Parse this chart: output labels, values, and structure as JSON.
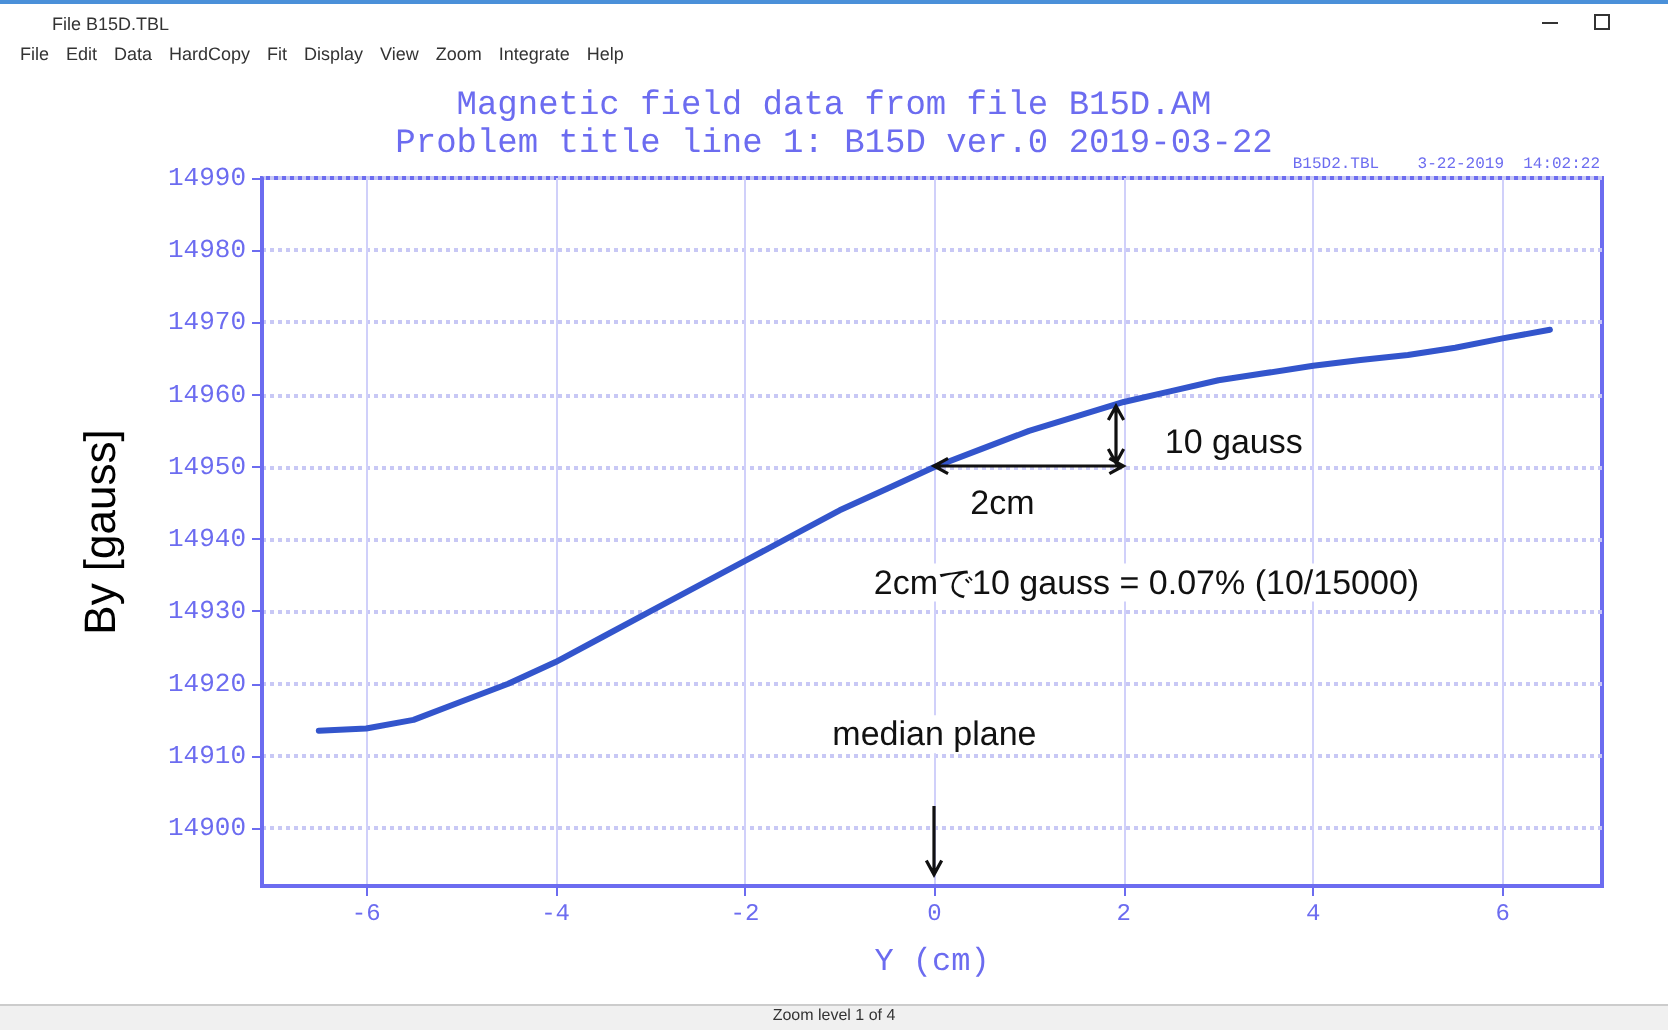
{
  "chart_data": {
    "type": "line",
    "title": "Magnetic field data from file B15D.AM",
    "subtitle": "Problem title line 1: B15D ver.0 2019-03-22",
    "xlabel": "Y (cm)",
    "ylabel": "By [gauss]",
    "x": [
      -6.5,
      -6,
      -5.5,
      -5,
      -4.5,
      -4,
      -3.5,
      -3,
      -2.5,
      -2,
      -1.5,
      -1,
      -0.5,
      0,
      0.5,
      1,
      1.5,
      2,
      2.5,
      3,
      3.5,
      4,
      4.5,
      5,
      5.5,
      6,
      6.5
    ],
    "series": [
      {
        "color": "#3355cc",
        "values": [
          14913.5,
          14913.8,
          14915,
          14917.5,
          14920,
          14923,
          14926.5,
          14930,
          14933.5,
          14937,
          14940.5,
          14944,
          14947,
          14950,
          14952.5,
          14955,
          14957,
          14959,
          14960.5,
          14962,
          14963,
          14964,
          14964.8,
          14965.5,
          14966.5,
          14967.8,
          14969
        ]
      }
    ],
    "xlim": [
      -7.1,
      7.05
    ],
    "xticks": [
      -6,
      -4,
      -2,
      0,
      2,
      4,
      6
    ],
    "ylim": [
      14892,
      14990
    ],
    "yticks": [
      14900,
      14910,
      14920,
      14930,
      14940,
      14950,
      14960,
      14970,
      14980,
      14990
    ],
    "grid": true,
    "marker": "none",
    "line_style": "solid",
    "annotations": [
      "File B15D.TBL",
      "File Edit Data HardCopy Fit Display View Zoom Integrate Help",
      "B15D2.TBL    3-22-2019  14:02:22",
      "Zoom level 1 of 4",
      {
        "text": "10 gauss",
        "x": 2,
        "y": 14959
      },
      {
        "text": "2cm",
        "x": 0,
        "y": 14950
      },
      "2cmで10 gauss = 0.07% (10/15000)",
      "median plane"
    ]
  }
}
